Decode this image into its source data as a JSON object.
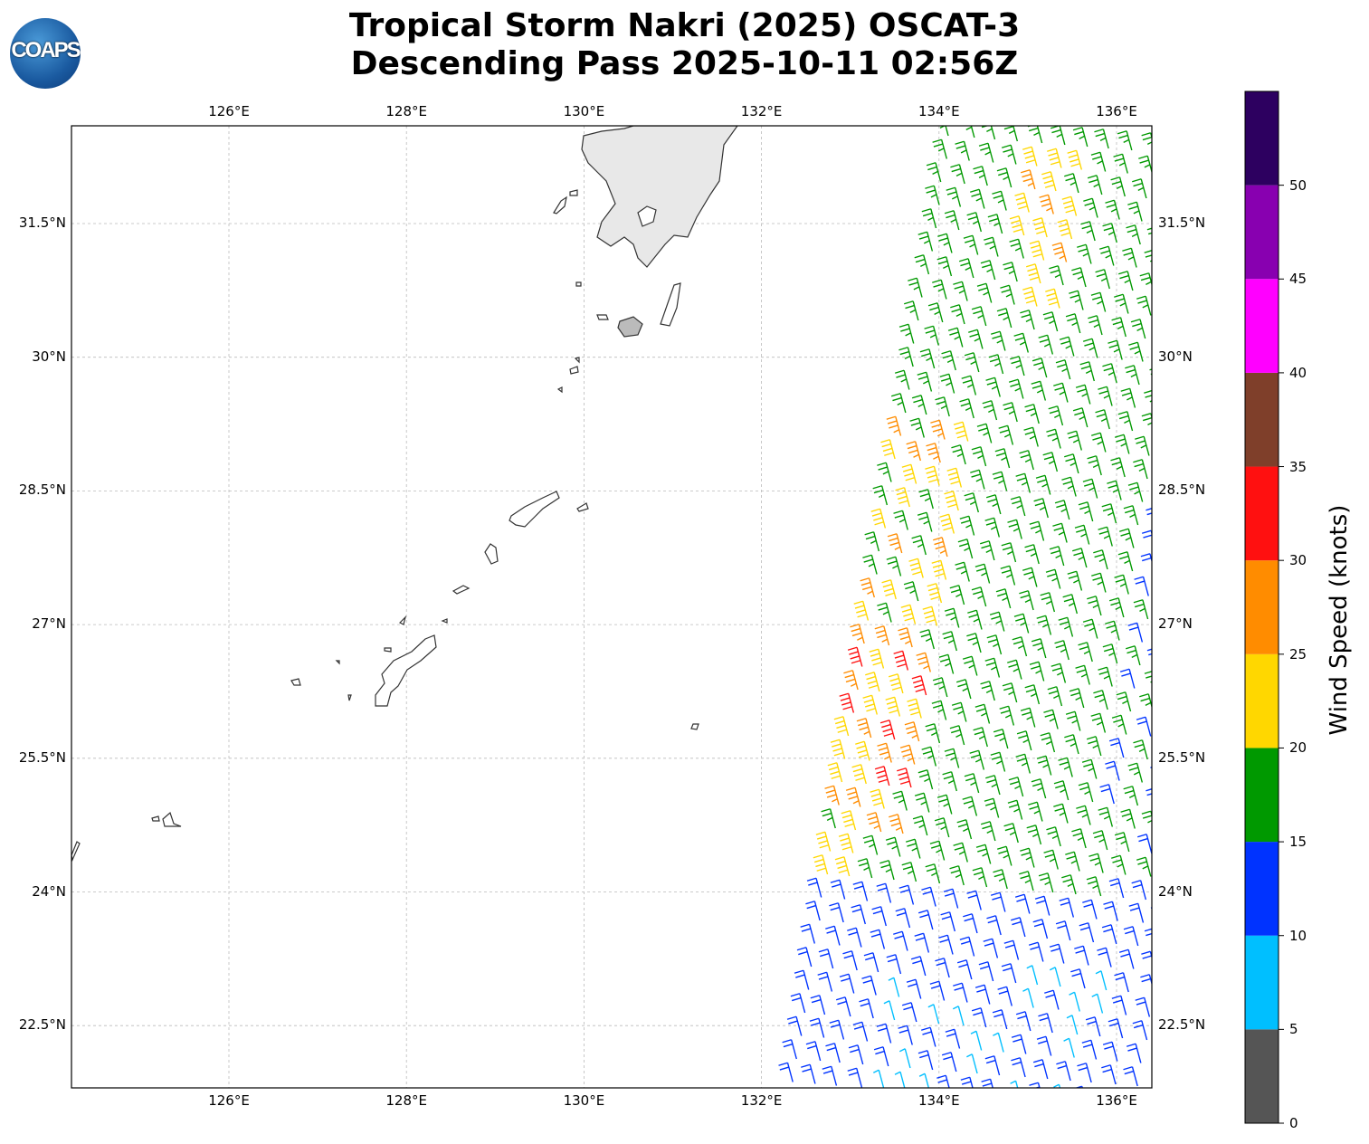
{
  "title": {
    "line1": "Tropical Storm Nakri (2025) OSCAT-3",
    "line2": "Descending Pass 2025-10-11 02:56Z"
  },
  "logo": {
    "text": "COAPS"
  },
  "lon_labels": [
    "126°E",
    "128°E",
    "130°E",
    "132°E",
    "134°E",
    "136°E"
  ],
  "lat_labels": [
    "31.5°N",
    "30°N",
    "28.5°N",
    "27°N",
    "25.5°N",
    "24°N",
    "22.5°N"
  ],
  "colorbar": {
    "label": "Wind Speed (knots)",
    "ticks": [
      "0",
      "5",
      "10",
      "15",
      "20",
      "25",
      "30",
      "35",
      "40",
      "45",
      "50"
    ],
    "colors": [
      "#555555",
      "#00bfff",
      "#0033ff",
      "#009900",
      "#ffd700",
      "#ff8c00",
      "#ff1010",
      "#7f3f2a",
      "#ff00ff",
      "#8800b0",
      "#2d0060"
    ]
  }
}
